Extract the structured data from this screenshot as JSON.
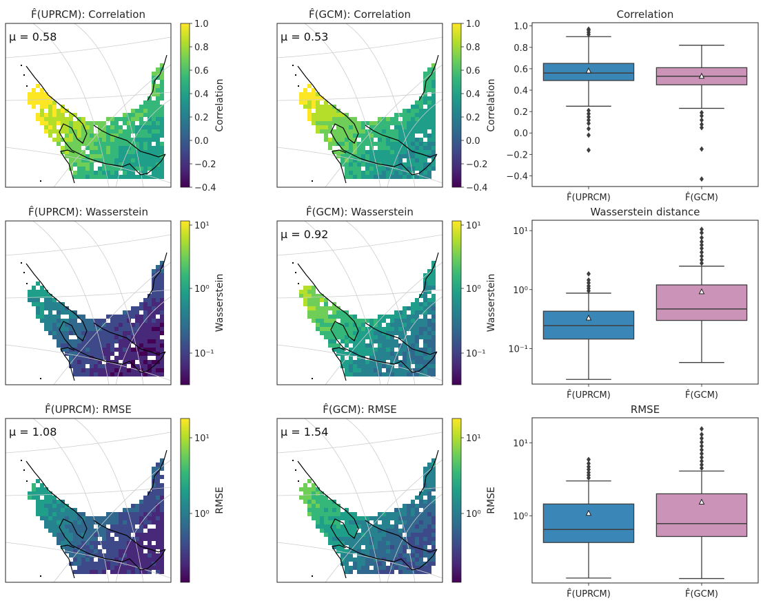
{
  "colors": {
    "uprcm": "#3a87b7",
    "gcm": "#cc93b8",
    "viridis": [
      "#440154",
      "#482878",
      "#3e4989",
      "#31688e",
      "#26828e",
      "#1f9e89",
      "#35b779",
      "#6ece58",
      "#b5de2b",
      "#fde725"
    ],
    "coastline": "#000000",
    "graticule": "#cccccc"
  },
  "map_panels": [
    {
      "row": 0,
      "col": 0,
      "title": "F̂(UPRCM): Correlation",
      "mu": "μ = 0.58",
      "colorbar": {
        "label": "Correlation",
        "scale": "linear",
        "ticks": [
          "1.0",
          "0.8",
          "0.6",
          "0.4",
          "0.2",
          "0.0",
          "−0.2",
          "−0.4"
        ]
      },
      "field_level": 0.75
    },
    {
      "row": 0,
      "col": 1,
      "title": "F̂(GCM): Correlation",
      "mu": "μ = 0.53",
      "colorbar": {
        "label": "Correlation",
        "scale": "linear",
        "ticks": [
          "1.0",
          "0.8",
          "0.6",
          "0.4",
          "0.2",
          "0.0",
          "−0.2",
          "−0.4"
        ]
      },
      "field_level": 0.68
    },
    {
      "row": 1,
      "col": 0,
      "title": "F̂(UPRCM): Wasserstein",
      "mu": "",
      "colorbar": {
        "label": "Wasserstein",
        "scale": "log",
        "ticks": [
          "10¹",
          "10⁰",
          "10⁻¹"
        ]
      },
      "field_level": 0.25
    },
    {
      "row": 1,
      "col": 1,
      "title": "F̂(GCM): Wasserstein",
      "mu": "μ = 0.92",
      "colorbar": {
        "label": "Wasserstein",
        "scale": "log",
        "ticks": [
          "10¹",
          "10⁰",
          "10⁻¹"
        ]
      },
      "field_level": 0.55
    },
    {
      "row": 2,
      "col": 0,
      "title": "F̂(UPRCM): RMSE",
      "mu": "μ = 1.08",
      "colorbar": {
        "label": "RMSE",
        "scale": "log",
        "ticks": [
          "10¹",
          "10⁰"
        ]
      },
      "field_level": 0.3
    },
    {
      "row": 2,
      "col": 1,
      "title": "F̂(GCM): RMSE",
      "mu": "μ = 1.54",
      "colorbar": {
        "label": "RMSE",
        "scale": "log",
        "ticks": [
          "10¹",
          "10⁰"
        ]
      },
      "field_level": 0.45
    }
  ],
  "chart_data": [
    {
      "type": "box",
      "title": "Correlation",
      "yscale": "linear",
      "ylim": [
        -0.5,
        1.03
      ],
      "yticks": [
        -0.4,
        -0.2,
        0.0,
        0.2,
        0.4,
        0.6,
        0.8,
        1.0
      ],
      "ytick_labels": [
        "−0.4",
        "−0.2",
        "0.0",
        "0.2",
        "0.4",
        "0.6",
        "0.8",
        "1.0"
      ],
      "categories": [
        "F̂(UPRCM)",
        "F̂(GCM)"
      ],
      "boxes": [
        {
          "q1": 0.49,
          "median": 0.56,
          "q3": 0.65,
          "whisker_low": 0.25,
          "whisker_high": 0.9,
          "mean": 0.58,
          "fliers": [
            0.92,
            0.94,
            0.96,
            0.97,
            0.21,
            0.18,
            0.15,
            0.12,
            0.09,
            0.04,
            -0.02,
            -0.16
          ]
        },
        {
          "q1": 0.45,
          "median": 0.53,
          "q3": 0.61,
          "whisker_low": 0.23,
          "whisker_high": 0.82,
          "mean": 0.53,
          "fliers": [
            0.19,
            0.16,
            0.12,
            0.08,
            0.05,
            -0.15,
            -0.43
          ]
        }
      ]
    },
    {
      "type": "box",
      "title": "Wasserstein distance",
      "yscale": "log",
      "ylim": [
        0.025,
        15
      ],
      "yticks": [
        0.1,
        1,
        10
      ],
      "ytick_labels": [
        "10⁻¹",
        "10⁰",
        "10¹"
      ],
      "categories": [
        "F̂(UPRCM)",
        "F̂(GCM)"
      ],
      "boxes": [
        {
          "q1": 0.145,
          "median": 0.245,
          "q3": 0.43,
          "whisker_low": 0.03,
          "whisker_high": 0.87,
          "mean": 0.33,
          "fliers": [
            0.95,
            1.05,
            1.15,
            1.3,
            1.45,
            1.85
          ]
        },
        {
          "q1": 0.3,
          "median": 0.47,
          "q3": 1.2,
          "whisker_low": 0.058,
          "whisker_high": 2.5,
          "mean": 0.92,
          "fliers": [
            2.8,
            3.2,
            3.7,
            4.3,
            5.0,
            5.7,
            6.5,
            7.6,
            9.2,
            10.5
          ]
        }
      ]
    },
    {
      "type": "box",
      "title": "RMSE",
      "yscale": "log",
      "ylim": [
        0.12,
        22
      ],
      "yticks": [
        1,
        10
      ],
      "ytick_labels": [
        "10⁰",
        "10¹"
      ],
      "categories": [
        "F̂(UPRCM)",
        "F̂(GCM)"
      ],
      "boxes": [
        {
          "q1": 0.43,
          "median": 0.65,
          "q3": 1.45,
          "whisker_low": 0.14,
          "whisker_high": 3.0,
          "mean": 1.08,
          "fliers": [
            3.3,
            3.6,
            3.9,
            4.3,
            4.7,
            5.2,
            5.9
          ]
        },
        {
          "q1": 0.52,
          "median": 0.78,
          "q3": 2.0,
          "whisker_low": 0.138,
          "whisker_high": 4.1,
          "mean": 1.54,
          "fliers": [
            4.5,
            5.0,
            5.6,
            6.3,
            7.1,
            8.0,
            9.0,
            10.2,
            11.5,
            13.0,
            15.5
          ]
        }
      ]
    }
  ]
}
